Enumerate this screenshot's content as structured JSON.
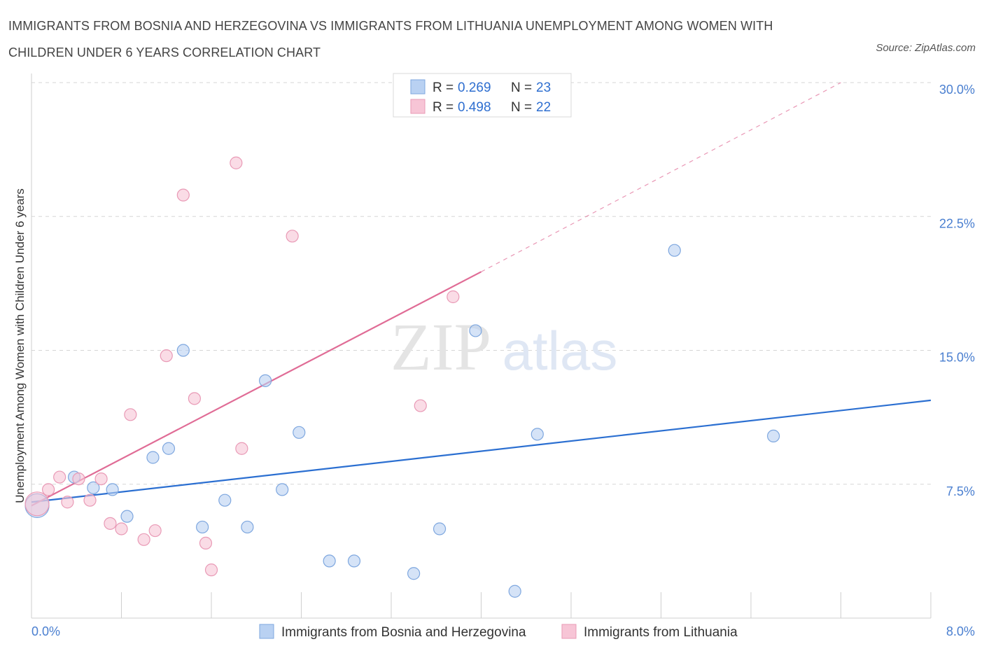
{
  "title": "IMMIGRANTS FROM BOSNIA AND HERZEGOVINA VS IMMIGRANTS FROM LITHUANIA UNEMPLOYMENT AMONG WOMEN WITH CHILDREN UNDER 6 YEARS CORRELATION CHART",
  "source": "Source: ZipAtlas.com",
  "watermark": {
    "zip": "ZIP",
    "atlas": "atlas"
  },
  "colors": {
    "blue_fill": "#b9d1f2",
    "blue_stroke": "#7ea7df",
    "blue_line": "#2b6fd1",
    "pink_fill": "#f7c5d6",
    "pink_stroke": "#e99ab6",
    "pink_line": "#e06c96",
    "grid": "#d5d5d5",
    "axis_text": "#4a7fd0"
  },
  "legend": {
    "rows": [
      {
        "r_label": "R = ",
        "r_value": "0.269",
        "n_label": "N = ",
        "n_value": "23"
      },
      {
        "r_label": "R = ",
        "r_value": "0.498",
        "n_label": "N = ",
        "n_value": "22"
      }
    ]
  },
  "chart_data": {
    "type": "scatter",
    "title": "IMMIGRANTS FROM BOSNIA AND HERZEGOVINA VS IMMIGRANTS FROM LITHUANIA UNEMPLOYMENT AMONG WOMEN WITH CHILDREN UNDER 6 YEARS CORRELATION CHART",
    "xlabel": "",
    "ylabel": "Unemployment Among Women with Children Under 6 years",
    "xlim": [
      0,
      8
    ],
    "ylim": [
      0,
      30
    ],
    "x_tick_labels": [
      "0.0%",
      "8.0%"
    ],
    "y_ticks": [
      {
        "value": 7.5,
        "label": "7.5%"
      },
      {
        "value": 15,
        "label": "15.0%"
      },
      {
        "value": 22.5,
        "label": "22.5%"
      },
      {
        "value": 30,
        "label": "30.0%"
      }
    ],
    "grid": "horizontal-dashed",
    "legend_position": "bottom-center",
    "series": [
      {
        "name": "Immigrants from Bosnia and Herzegovina",
        "color": "#b9d1f2",
        "trend": {
          "x": [
            0,
            8
          ],
          "y": [
            6.5,
            12.2
          ],
          "style": "solid"
        },
        "points": [
          {
            "x": 0.05,
            "y": 6.3,
            "big": true
          },
          {
            "x": 0.38,
            "y": 7.9
          },
          {
            "x": 0.55,
            "y": 7.3
          },
          {
            "x": 0.72,
            "y": 7.2
          },
          {
            "x": 0.85,
            "y": 5.7
          },
          {
            "x": 1.08,
            "y": 9.0
          },
          {
            "x": 1.22,
            "y": 9.5
          },
          {
            "x": 1.35,
            "y": 15.0
          },
          {
            "x": 1.52,
            "y": 5.1
          },
          {
            "x": 1.72,
            "y": 6.6
          },
          {
            "x": 1.92,
            "y": 5.1
          },
          {
            "x": 2.08,
            "y": 13.3
          },
          {
            "x": 2.23,
            "y": 7.2
          },
          {
            "x": 2.38,
            "y": 10.4
          },
          {
            "x": 2.65,
            "y": 3.2
          },
          {
            "x": 2.87,
            "y": 3.2
          },
          {
            "x": 3.4,
            "y": 2.5
          },
          {
            "x": 3.63,
            "y": 5.0
          },
          {
            "x": 3.95,
            "y": 16.1
          },
          {
            "x": 4.3,
            "y": 1.5
          },
          {
            "x": 4.5,
            "y": 10.3
          },
          {
            "x": 5.72,
            "y": 20.6
          },
          {
            "x": 6.6,
            "y": 10.2
          }
        ]
      },
      {
        "name": "Immigrants from Lithuania",
        "color": "#f7c5d6",
        "trend": {
          "x": [
            0,
            4.0
          ],
          "y": [
            6.3,
            19.4
          ],
          "style": "solid",
          "extend_to": [
            7.2,
            30
          ],
          "extend_style": "dashed"
        },
        "points": [
          {
            "x": 0.05,
            "y": 6.4,
            "big": true
          },
          {
            "x": 0.15,
            "y": 7.2
          },
          {
            "x": 0.25,
            "y": 7.9
          },
          {
            "x": 0.32,
            "y": 6.5
          },
          {
            "x": 0.42,
            "y": 7.8
          },
          {
            "x": 0.52,
            "y": 6.6
          },
          {
            "x": 0.62,
            "y": 7.8
          },
          {
            "x": 0.7,
            "y": 5.3
          },
          {
            "x": 0.8,
            "y": 5.0
          },
          {
            "x": 0.88,
            "y": 11.4
          },
          {
            "x": 1.0,
            "y": 4.4
          },
          {
            "x": 1.1,
            "y": 4.9
          },
          {
            "x": 1.2,
            "y": 14.7
          },
          {
            "x": 1.35,
            "y": 23.7
          },
          {
            "x": 1.45,
            "y": 12.3
          },
          {
            "x": 1.55,
            "y": 4.2
          },
          {
            "x": 1.6,
            "y": 2.7
          },
          {
            "x": 1.82,
            "y": 25.5
          },
          {
            "x": 1.87,
            "y": 9.5
          },
          {
            "x": 2.32,
            "y": 21.4
          },
          {
            "x": 3.46,
            "y": 11.9
          },
          {
            "x": 3.75,
            "y": 18.0
          }
        ]
      }
    ]
  }
}
